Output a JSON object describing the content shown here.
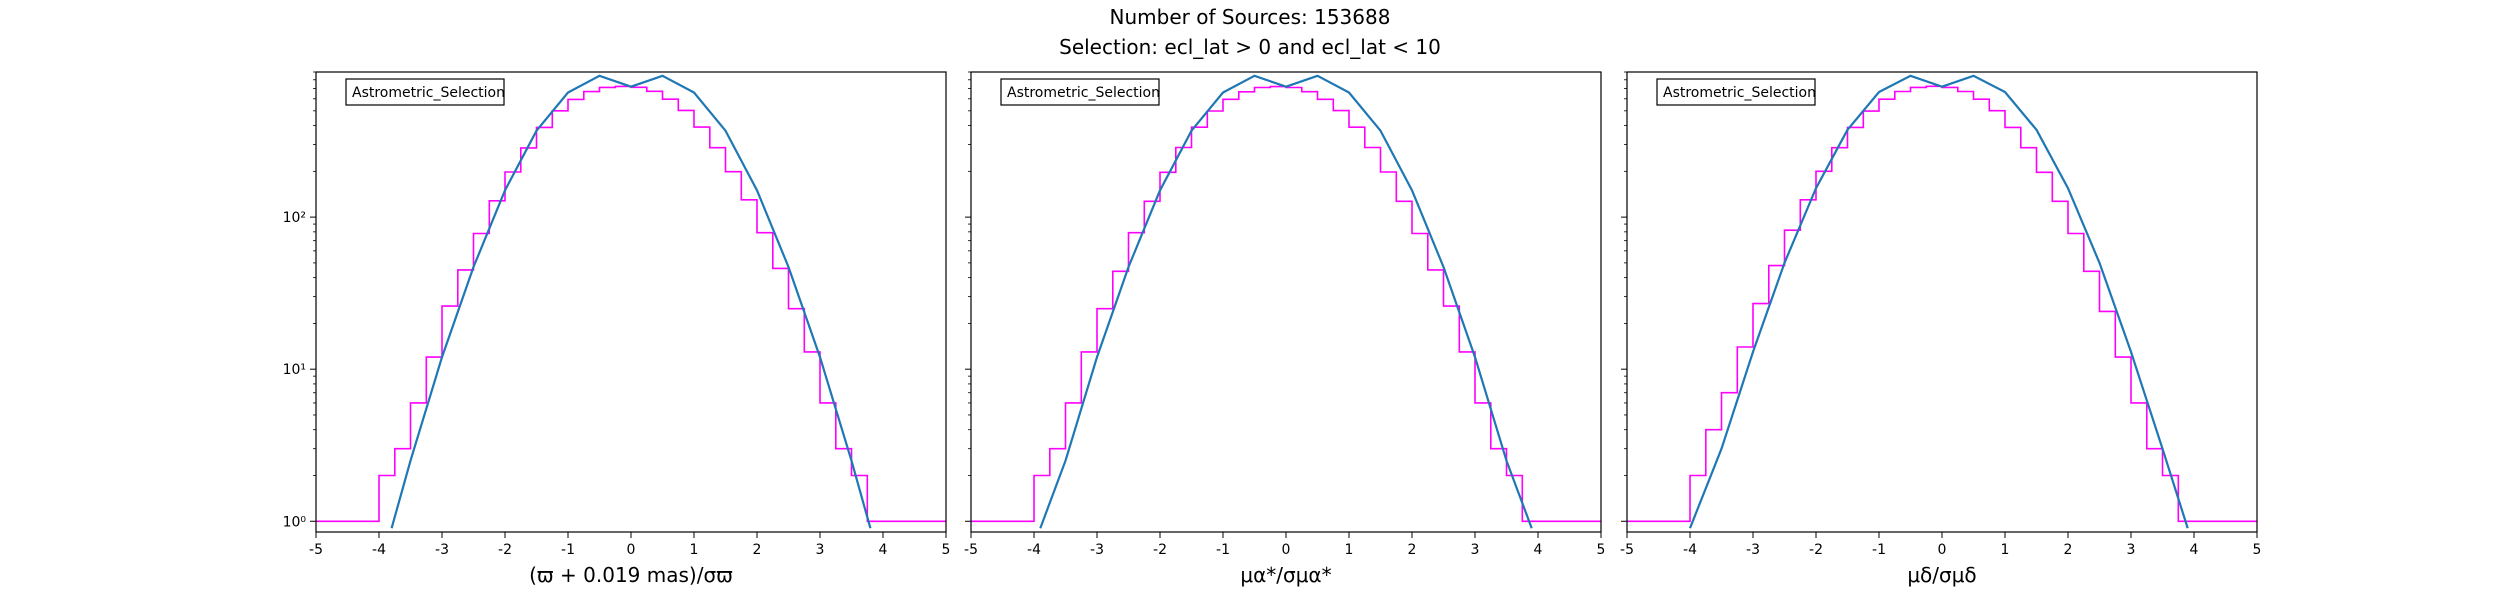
{
  "figure": {
    "title_line1": "Number of Sources: 153688",
    "title_line2": "Selection: ecl_lat > 0 and ecl_lat < 10"
  },
  "colors": {
    "histogram": "#ff00ff",
    "fit": "#1f77b4",
    "axes": "#000000"
  },
  "chart_data": [
    {
      "type": "line",
      "title": "",
      "annotation": "Astrometric_Selection",
      "xlabel": "(ϖ + 0.019 mas)/σϖ",
      "ylabel": "",
      "xlim": [
        -5,
        5
      ],
      "yscale": "log",
      "ylim": [
        0.85,
        900
      ],
      "x_ticks": [
        -5,
        -4,
        -3,
        -2,
        -1,
        0,
        1,
        2,
        3,
        4,
        5
      ],
      "y_ticks": [
        1,
        10,
        100
      ],
      "y_tick_labels": [
        "10⁰",
        "10¹",
        "10²"
      ],
      "grid": false,
      "series": [
        {
          "kind": "step-histogram",
          "color": "#ff00ff",
          "x": [
            -5.0,
            -4.75,
            -4.5,
            -4.25,
            -4.0,
            -3.75,
            -3.5,
            -3.25,
            -3.0,
            -2.75,
            -2.5,
            -2.25,
            -2.0,
            -1.75,
            -1.5,
            -1.25,
            -1.0,
            -0.75,
            -0.5,
            -0.25,
            0.0,
            0.25,
            0.5,
            0.75,
            1.0,
            1.25,
            1.5,
            1.75,
            2.0,
            2.25,
            2.5,
            2.75,
            3.0,
            3.25,
            3.5,
            3.75,
            4.0,
            4.25,
            4.5,
            4.75
          ],
          "y": [
            1,
            1,
            1,
            1,
            2,
            3,
            6,
            12,
            26,
            45,
            78,
            128,
            198,
            285,
            389,
            500,
            594,
            669,
            713,
            724,
            714,
            672,
            596,
            503,
            391,
            286,
            199,
            130,
            79,
            46,
            25,
            13,
            6,
            3,
            2,
            1,
            1,
            1,
            1,
            1
          ]
        },
        {
          "kind": "gaussian-fit",
          "color": "#1f77b4",
          "x": [
            -3.8,
            -3.5,
            -3.0,
            -2.5,
            -2.0,
            -1.5,
            -1.0,
            -0.5,
            0.0,
            0.5,
            1.0,
            1.5,
            2.0,
            2.5,
            3.0,
            3.5,
            3.8
          ],
          "y": [
            0.9,
            2.5,
            12,
            47,
            150,
            370,
            660,
            850,
            720,
            850,
            660,
            370,
            150,
            47,
            12,
            2.5,
            0.9
          ]
        }
      ]
    },
    {
      "type": "line",
      "title": "",
      "annotation": "Astrometric_Selection",
      "xlabel": "μα*/σμα*",
      "ylabel": "",
      "xlim": [
        -5,
        5
      ],
      "yscale": "log",
      "ylim": [
        0.85,
        900
      ],
      "x_ticks": [
        -5,
        -4,
        -3,
        -2,
        -1,
        0,
        1,
        2,
        3,
        4,
        5
      ],
      "y_ticks": [
        1,
        10,
        100
      ],
      "y_tick_labels": [
        "",
        "",
        ""
      ],
      "grid": false,
      "series": [
        {
          "kind": "step-histogram",
          "color": "#ff00ff",
          "x": [
            -5.0,
            -4.75,
            -4.5,
            -4.25,
            -4.0,
            -3.75,
            -3.5,
            -3.25,
            -3.0,
            -2.75,
            -2.5,
            -2.25,
            -2.0,
            -1.75,
            -1.5,
            -1.25,
            -1.0,
            -0.75,
            -0.5,
            -0.25,
            0.0,
            0.25,
            0.5,
            0.75,
            1.0,
            1.25,
            1.5,
            1.75,
            2.0,
            2.25,
            2.5,
            2.75,
            3.0,
            3.25,
            3.5,
            3.75,
            4.0,
            4.25,
            4.5,
            4.75
          ],
          "y": [
            1,
            1,
            1,
            1,
            2,
            3,
            6,
            13,
            25,
            44,
            79,
            127,
            197,
            287,
            390,
            499,
            595,
            667,
            712,
            722,
            712,
            668,
            595,
            502,
            390,
            287,
            198,
            127,
            78,
            45,
            26,
            13,
            6,
            3,
            2,
            1,
            1,
            1,
            1,
            1
          ]
        },
        {
          "kind": "gaussian-fit",
          "color": "#1f77b4",
          "x": [
            -3.9,
            -3.5,
            -3.0,
            -2.5,
            -2.0,
            -1.5,
            -1.0,
            -0.5,
            0.0,
            0.5,
            1.0,
            1.5,
            2.0,
            2.5,
            3.0,
            3.5,
            3.9
          ],
          "y": [
            0.9,
            2.5,
            12,
            47,
            150,
            370,
            660,
            850,
            720,
            850,
            660,
            370,
            150,
            47,
            12,
            2.5,
            0.9
          ]
        }
      ]
    },
    {
      "type": "line",
      "title": "",
      "annotation": "Astrometric_Selection",
      "xlabel": "μδ/σμδ",
      "ylabel": "",
      "xlim": [
        -5,
        5
      ],
      "yscale": "log",
      "ylim": [
        0.85,
        900
      ],
      "x_ticks": [
        -5,
        -4,
        -3,
        -2,
        -1,
        0,
        1,
        2,
        3,
        4,
        5
      ],
      "y_ticks": [
        1,
        10,
        100
      ],
      "y_tick_labels": [
        "",
        "",
        ""
      ],
      "grid": false,
      "series": [
        {
          "kind": "step-histogram",
          "color": "#ff00ff",
          "x": [
            -5.0,
            -4.75,
            -4.5,
            -4.25,
            -4.0,
            -3.75,
            -3.5,
            -3.25,
            -3.0,
            -2.75,
            -2.5,
            -2.25,
            -2.0,
            -1.75,
            -1.5,
            -1.25,
            -1.0,
            -0.75,
            -0.5,
            -0.25,
            0.0,
            0.25,
            0.5,
            0.75,
            1.0,
            1.25,
            1.5,
            1.75,
            2.0,
            2.25,
            2.5,
            2.75,
            3.0,
            3.25,
            3.5,
            3.75,
            4.0,
            4.25,
            4.5,
            4.75
          ],
          "y": [
            1,
            1,
            1,
            1,
            2,
            4,
            7,
            14,
            27,
            48,
            82,
            130,
            200,
            286,
            389,
            498,
            596,
            670,
            713,
            725,
            713,
            670,
            596,
            501,
            389,
            286,
            197,
            127,
            78,
            44,
            24,
            12,
            6,
            3,
            2,
            1,
            1,
            1,
            1,
            1
          ]
        },
        {
          "kind": "gaussian-fit",
          "color": "#1f77b4",
          "x": [
            -4.0,
            -3.5,
            -3.0,
            -2.5,
            -2.0,
            -1.5,
            -1.0,
            -0.5,
            0.0,
            0.5,
            1.0,
            1.5,
            2.0,
            2.5,
            3.0,
            3.5,
            3.9
          ],
          "y": [
            0.9,
            3,
            13,
            50,
            155,
            375,
            665,
            850,
            720,
            850,
            665,
            375,
            155,
            50,
            13,
            3,
            0.9
          ]
        }
      ]
    }
  ]
}
